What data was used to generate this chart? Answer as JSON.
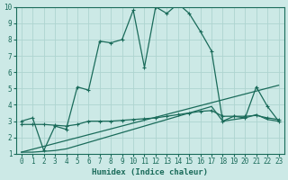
{
  "xlabel": "Humidex (Indice chaleur)",
  "bg_color": "#cce9e6",
  "grid_color": "#aed4d0",
  "line_color": "#1a6b5a",
  "xlim": [
    -0.5,
    23.5
  ],
  "ylim": [
    1,
    10
  ],
  "yticks": [
    1,
    2,
    3,
    4,
    5,
    6,
    7,
    8,
    9,
    10
  ],
  "xticks": [
    0,
    1,
    2,
    3,
    4,
    5,
    6,
    7,
    8,
    9,
    10,
    11,
    12,
    13,
    14,
    15,
    16,
    17,
    18,
    19,
    20,
    21,
    22,
    23
  ],
  "series1_x": [
    0,
    1,
    2,
    3,
    4,
    5,
    6,
    7,
    8,
    9,
    10,
    11,
    12,
    13,
    14,
    15,
    16,
    17,
    18,
    19,
    20,
    21,
    22,
    23
  ],
  "series1_y": [
    3.0,
    3.2,
    1.2,
    2.7,
    2.5,
    5.1,
    4.9,
    7.9,
    7.8,
    8.0,
    9.8,
    6.3,
    10.0,
    9.6,
    10.2,
    9.6,
    8.5,
    7.3,
    3.0,
    3.3,
    3.2,
    5.1,
    3.9,
    3.0
  ],
  "series2_x": [
    0,
    1,
    2,
    3,
    4,
    5,
    6,
    7,
    8,
    9,
    10,
    11,
    12,
    13,
    14,
    15,
    16,
    17,
    18,
    19,
    20,
    21,
    22,
    23
  ],
  "series2_y": [
    2.8,
    2.8,
    2.8,
    2.75,
    2.7,
    2.8,
    3.0,
    3.0,
    3.0,
    3.05,
    3.1,
    3.15,
    3.2,
    3.3,
    3.4,
    3.5,
    3.6,
    3.65,
    3.3,
    3.3,
    3.3,
    3.35,
    3.2,
    3.1
  ],
  "series3_x": [
    0,
    1,
    2,
    3,
    4,
    5,
    6,
    7,
    8,
    9,
    10,
    11,
    12,
    13,
    14,
    15,
    16,
    17,
    18,
    19,
    20,
    21,
    22,
    23
  ],
  "series3_y": [
    1.1,
    1.1,
    1.15,
    1.2,
    1.3,
    1.5,
    1.7,
    1.9,
    2.1,
    2.3,
    2.5,
    2.7,
    2.9,
    3.1,
    3.3,
    3.5,
    3.7,
    3.9,
    3.0,
    3.1,
    3.2,
    3.4,
    3.1,
    3.0
  ],
  "series4_x": [
    0,
    23
  ],
  "series4_y": [
    1.1,
    5.2
  ]
}
